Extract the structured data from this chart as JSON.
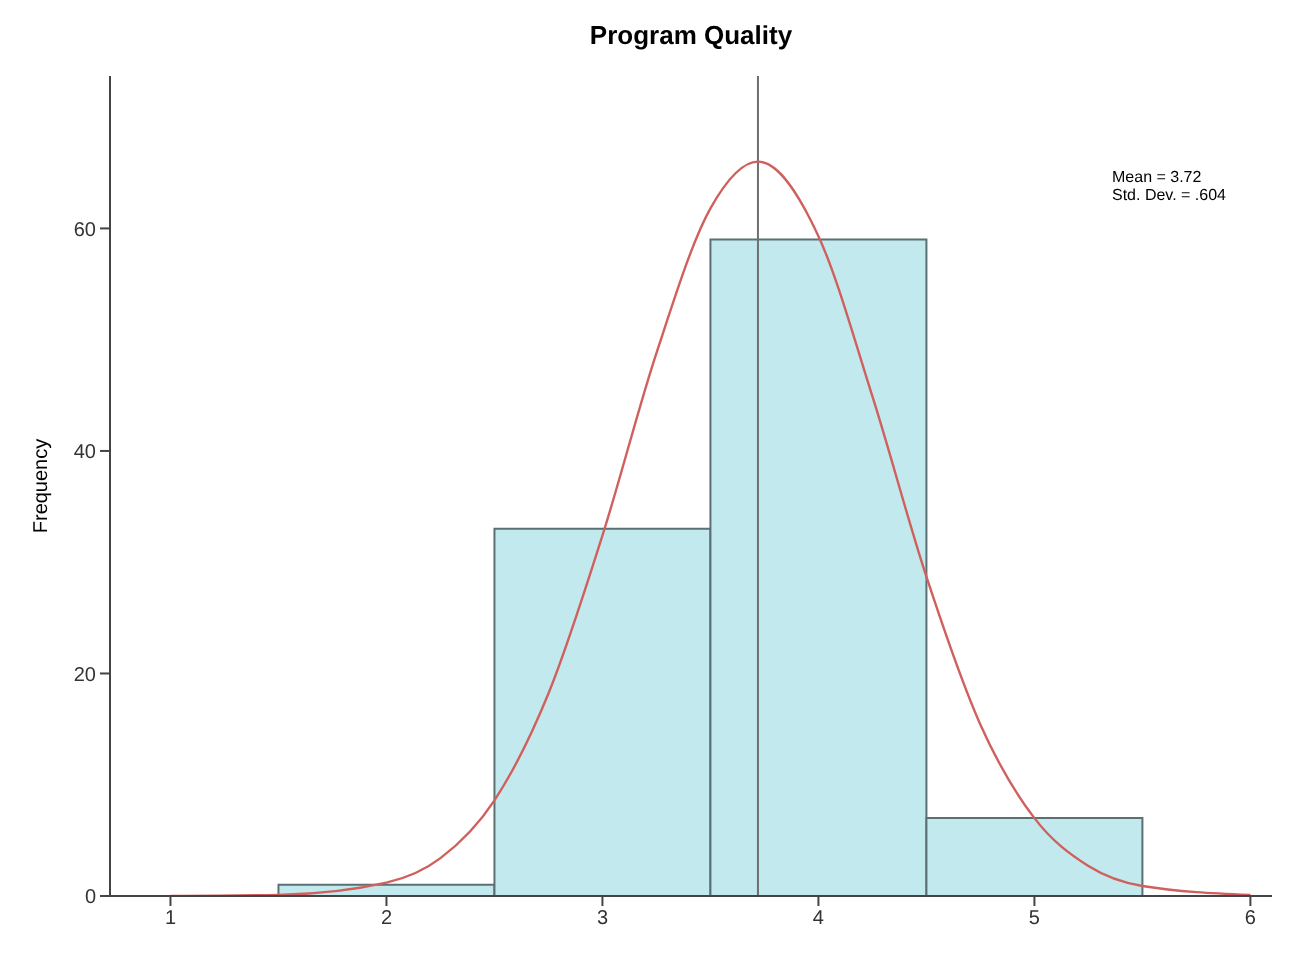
{
  "chart_data": {
    "type": "histogram",
    "title": "Program Quality",
    "ylabel": "Frequency",
    "bins": [
      1.5,
      2.5,
      3.5,
      4.5,
      5.5
    ],
    "values": [
      1,
      33,
      59,
      7
    ],
    "color": "#c2eaee",
    "series": [
      {
        "type": "line",
        "color": "#d0605e",
        "x": [
          1,
          1.5,
          2,
          2.25,
          2.5,
          2.75,
          3,
          3.25,
          3.5,
          3.72,
          4,
          4.25,
          4.5,
          4.75,
          5,
          5.25,
          5.5,
          6
        ],
        "values": [
          0,
          0.1,
          1.2,
          3.4,
          8.6,
          18.2,
          32.4,
          48.8,
          61.8,
          66,
          59.3,
          44.9,
          28.7,
          15.4,
          7,
          2.7,
          0.9,
          0.1
        ]
      }
    ],
    "xlim": [
      0.72,
      6.1
    ],
    "xticks": [
      1,
      2,
      3,
      4,
      5,
      6
    ],
    "ylim": [
      0,
      73.7
    ],
    "yticks": [
      0,
      20,
      40,
      60
    ],
    "ref_lines": [
      {
        "axis": "x",
        "value": 3.72,
        "color": "#6e6e6e"
      }
    ],
    "annotations": [
      "Mean = 3.72",
      "Std. Dev. = .604"
    ],
    "grid": false
  }
}
